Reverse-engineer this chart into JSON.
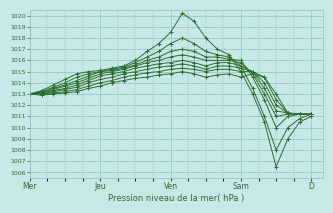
{
  "bg_color": "#c8e8e8",
  "grid_color": "#88c4c4",
  "line_color": "#2d6e2d",
  "xlabel_text": "Pression niveau de la mer( hPa )",
  "ylim": [
    1006,
    1020
  ],
  "yticks": [
    1006,
    1007,
    1008,
    1009,
    1010,
    1011,
    1012,
    1013,
    1014,
    1015,
    1016,
    1017,
    1018,
    1019,
    1020
  ],
  "xtick_labels": [
    "Mer",
    "Jeu",
    "Ven",
    "Sam",
    "D"
  ],
  "xtick_positions": [
    0,
    24,
    48,
    72,
    96
  ],
  "xlim": [
    0,
    100
  ],
  "lines": [
    {
      "x": [
        0,
        4,
        8,
        12,
        16,
        20,
        24,
        28,
        32,
        36,
        40,
        44,
        48,
        52,
        56,
        60,
        64,
        68,
        72,
        76,
        80,
        84,
        88,
        92,
        96
      ],
      "y": [
        1013,
        1013.3,
        1013.8,
        1014.3,
        1014.8,
        1015.0,
        1015.1,
        1015.3,
        1015.5,
        1016.0,
        1016.8,
        1017.5,
        1018.5,
        1020.2,
        1019.5,
        1018.0,
        1017.0,
        1016.5,
        1015.0,
        1013.0,
        1010.5,
        1006.5,
        1009.0,
        1010.5,
        1011.0
      ]
    },
    {
      "x": [
        0,
        4,
        8,
        12,
        16,
        20,
        24,
        28,
        32,
        36,
        40,
        44,
        48,
        52,
        56,
        60,
        64,
        68,
        72,
        76,
        80,
        84,
        88,
        92,
        96
      ],
      "y": [
        1013,
        1013.2,
        1013.6,
        1014.0,
        1014.5,
        1014.8,
        1015.0,
        1015.2,
        1015.4,
        1015.8,
        1016.3,
        1016.8,
        1017.5,
        1018.0,
        1017.5,
        1016.8,
        1016.5,
        1016.3,
        1015.5,
        1013.5,
        1011.0,
        1008.0,
        1010.0,
        1010.8,
        1011.2
      ]
    },
    {
      "x": [
        0,
        4,
        8,
        12,
        16,
        20,
        24,
        28,
        32,
        36,
        40,
        44,
        48,
        52,
        56,
        60,
        64,
        68,
        72,
        76,
        80,
        84,
        88,
        92,
        96
      ],
      "y": [
        1013,
        1013.2,
        1013.5,
        1013.8,
        1014.2,
        1014.6,
        1015.0,
        1015.1,
        1015.3,
        1015.6,
        1016.0,
        1016.3,
        1016.8,
        1017.0,
        1016.8,
        1016.3,
        1016.3,
        1016.1,
        1016.0,
        1014.5,
        1012.5,
        1010.0,
        1011.0,
        1011.2,
        1011.2
      ]
    },
    {
      "x": [
        0,
        4,
        8,
        12,
        16,
        20,
        24,
        28,
        32,
        36,
        40,
        44,
        48,
        52,
        56,
        60,
        64,
        68,
        72,
        76,
        80,
        84,
        88,
        92,
        96
      ],
      "y": [
        1013,
        1013.1,
        1013.4,
        1013.7,
        1014.0,
        1014.4,
        1014.8,
        1015.0,
        1015.2,
        1015.5,
        1015.8,
        1016.0,
        1016.3,
        1016.5,
        1016.3,
        1016.0,
        1016.0,
        1016.0,
        1015.8,
        1014.8,
        1013.0,
        1011.0,
        1011.2,
        1011.2,
        1011.2
      ]
    },
    {
      "x": [
        0,
        4,
        8,
        12,
        16,
        20,
        24,
        28,
        32,
        36,
        40,
        44,
        48,
        52,
        56,
        60,
        64,
        68,
        72,
        76,
        80,
        84,
        88,
        92,
        96
      ],
      "y": [
        1013,
        1013.1,
        1013.3,
        1013.5,
        1013.8,
        1014.2,
        1014.6,
        1014.8,
        1015.0,
        1015.3,
        1015.5,
        1015.7,
        1015.8,
        1016.0,
        1015.8,
        1015.5,
        1015.8,
        1015.8,
        1015.5,
        1015.0,
        1013.5,
        1011.5,
        1011.3,
        1011.2,
        1011.2
      ]
    },
    {
      "x": [
        0,
        4,
        8,
        12,
        16,
        20,
        24,
        28,
        32,
        36,
        40,
        44,
        48,
        52,
        56,
        60,
        64,
        68,
        72,
        76,
        80,
        84,
        88,
        92,
        96
      ],
      "y": [
        1013,
        1013.0,
        1013.2,
        1013.4,
        1013.6,
        1014.0,
        1014.3,
        1014.5,
        1014.8,
        1015.0,
        1015.2,
        1015.4,
        1015.5,
        1015.7,
        1015.5,
        1015.2,
        1015.5,
        1015.5,
        1015.3,
        1015.0,
        1014.0,
        1012.0,
        1011.3,
        1011.2,
        1011.2
      ]
    },
    {
      "x": [
        0,
        4,
        8,
        12,
        16,
        20,
        24,
        28,
        32,
        36,
        40,
        44,
        48,
        52,
        56,
        60,
        64,
        68,
        72,
        76,
        80,
        84,
        88,
        92,
        96
      ],
      "y": [
        1013,
        1013.0,
        1013.1,
        1013.2,
        1013.4,
        1013.7,
        1014.0,
        1014.2,
        1014.5,
        1014.7,
        1014.9,
        1015.0,
        1015.2,
        1015.3,
        1015.2,
        1015.0,
        1015.2,
        1015.2,
        1015.0,
        1015.0,
        1014.5,
        1012.5,
        1011.3,
        1011.2,
        1011.2
      ]
    },
    {
      "x": [
        0,
        4,
        8,
        12,
        16,
        20,
        24,
        28,
        32,
        36,
        40,
        44,
        48,
        52,
        56,
        60,
        64,
        68,
        72,
        76,
        80,
        84,
        88,
        92,
        96
      ],
      "y": [
        1013,
        1012.9,
        1013.0,
        1013.1,
        1013.2,
        1013.5,
        1013.7,
        1014.0,
        1014.2,
        1014.4,
        1014.5,
        1014.7,
        1014.8,
        1015.0,
        1014.8,
        1014.5,
        1014.7,
        1014.8,
        1014.5,
        1014.8,
        1014.5,
        1013.0,
        1011.3,
        1011.2,
        1011.2
      ]
    }
  ]
}
